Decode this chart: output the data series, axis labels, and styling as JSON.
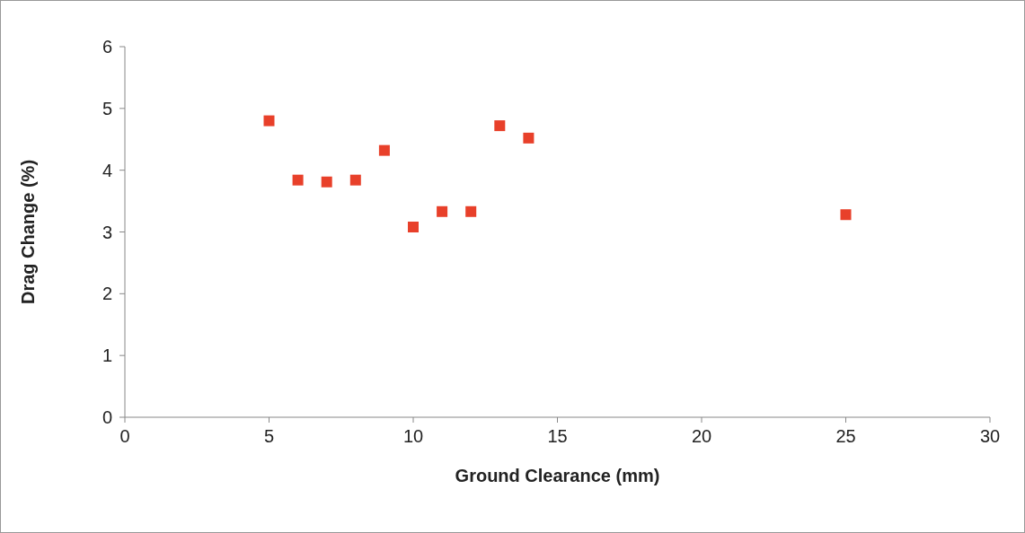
{
  "chart_data": {
    "type": "scatter",
    "xlabel": "Ground Clearance (mm)",
    "ylabel": "Drag Change (%)",
    "x": [
      5,
      6,
      7,
      8,
      9,
      10,
      11,
      12,
      13,
      14,
      25
    ],
    "series": [
      {
        "color": "#e8402a",
        "values": [
          4.8,
          3.84,
          3.81,
          3.84,
          4.32,
          3.08,
          3.33,
          3.33,
          4.72,
          4.52,
          3.28
        ]
      }
    ],
    "xlim": [
      0,
      30
    ],
    "xticks": [
      0,
      5,
      10,
      15,
      20,
      25,
      30
    ],
    "ylim": [
      0,
      6
    ],
    "yticks": [
      0,
      1,
      2,
      3,
      4,
      5,
      6
    ],
    "marker": "square",
    "grid": false
  }
}
